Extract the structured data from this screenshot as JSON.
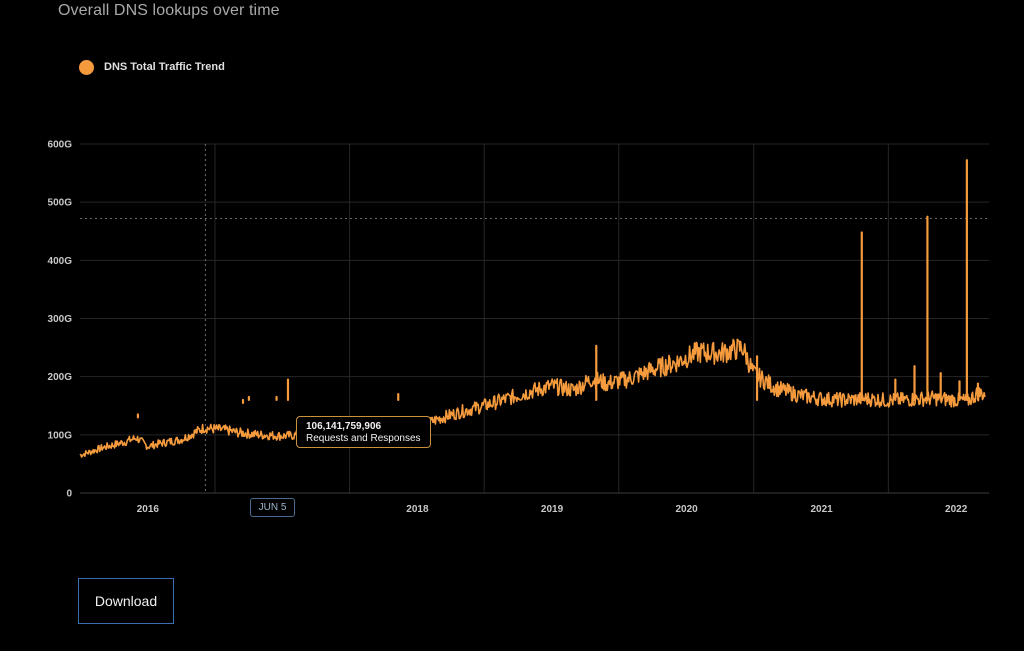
{
  "title": "Overall DNS lookups over time",
  "legend": {
    "label": "DNS Total Traffic Trend",
    "color": "#f59b3d"
  },
  "tooltip": {
    "value": "106,141,759,906",
    "label": "Requests and Responses"
  },
  "hover_x_label": "JUN 5",
  "download_label": "Download",
  "chart_data": {
    "type": "line",
    "title": "Overall DNS lookups over time",
    "xlabel": "",
    "ylabel": "",
    "y_unit": "G",
    "ylim": [
      0,
      600
    ],
    "y_ticks": [
      "0",
      "100G",
      "200G",
      "300G",
      "400G",
      "500G",
      "600G"
    ],
    "x_ticks": [
      "2016",
      "2018",
      "2019",
      "2020",
      "2021",
      "2022"
    ],
    "xlim": [
      "2015-07-01",
      "2022-03-31"
    ],
    "grid": true,
    "legend_position": "top-left",
    "reference_line_y": 472,
    "hover_date": "2016-06-05",
    "series": [
      {
        "name": "DNS Total Traffic Trend",
        "color": "#f59b3d",
        "x": [
          "2015-07-01",
          "2015-09-01",
          "2015-11-01",
          "2015-12-01",
          "2016-01-01",
          "2016-02-01",
          "2016-04-01",
          "2016-06-01",
          "2016-08-01",
          "2016-09-01",
          "2016-10-01",
          "2016-11-01",
          "2017-01-01",
          "2017-03-01",
          "2017-05-01",
          "2017-07-01",
          "2017-09-01",
          "2017-11-01",
          "2018-01-01",
          "2018-03-01",
          "2018-05-01",
          "2018-07-01",
          "2018-09-01",
          "2018-11-01",
          "2019-01-01",
          "2019-03-01",
          "2019-04-20",
          "2019-06-01",
          "2019-08-01",
          "2019-10-01",
          "2019-12-01",
          "2020-02-01",
          "2020-04-01",
          "2020-06-01",
          "2020-07-01",
          "2020-09-01",
          "2020-11-01",
          "2021-01-01",
          "2021-03-01",
          "2021-05-01",
          "2021-07-01",
          "2021-09-01",
          "2021-11-01",
          "2022-01-01",
          "2022-02-01",
          "2022-03-01",
          "2022-03-20"
        ],
        "y": [
          65,
          78,
          88,
          95,
          80,
          85,
          92,
          112,
          108,
          104,
          102,
          100,
          98,
          100,
          103,
          107,
          106,
          104,
          112,
          128,
          140,
          150,
          162,
          174,
          184,
          177,
          196,
          188,
          197,
          212,
          224,
          242,
          240,
          250,
          205,
          180,
          168,
          162,
          160,
          162,
          159,
          161,
          163,
          160,
          158,
          172,
          170
        ]
      }
    ],
    "spikes": [
      {
        "x": "2015-12-05",
        "y": 135
      },
      {
        "x": "2016-09-15",
        "y": 160
      },
      {
        "x": "2016-10-01",
        "y": 165
      },
      {
        "x": "2016-12-15",
        "y": 165
      },
      {
        "x": "2017-01-15",
        "y": 195
      },
      {
        "x": "2017-11-10",
        "y": 170
      },
      {
        "x": "2019-05-01",
        "y": 253
      },
      {
        "x": "2020-07-10",
        "y": 235
      },
      {
        "x": "2021-04-20",
        "y": 448
      },
      {
        "x": "2021-07-20",
        "y": 195
      },
      {
        "x": "2021-09-10",
        "y": 218
      },
      {
        "x": "2021-10-15",
        "y": 475
      },
      {
        "x": "2021-11-20",
        "y": 206
      },
      {
        "x": "2022-01-10",
        "y": 192
      },
      {
        "x": "2022-01-30",
        "y": 572
      },
      {
        "x": "2022-03-01",
        "y": 188
      }
    ]
  }
}
